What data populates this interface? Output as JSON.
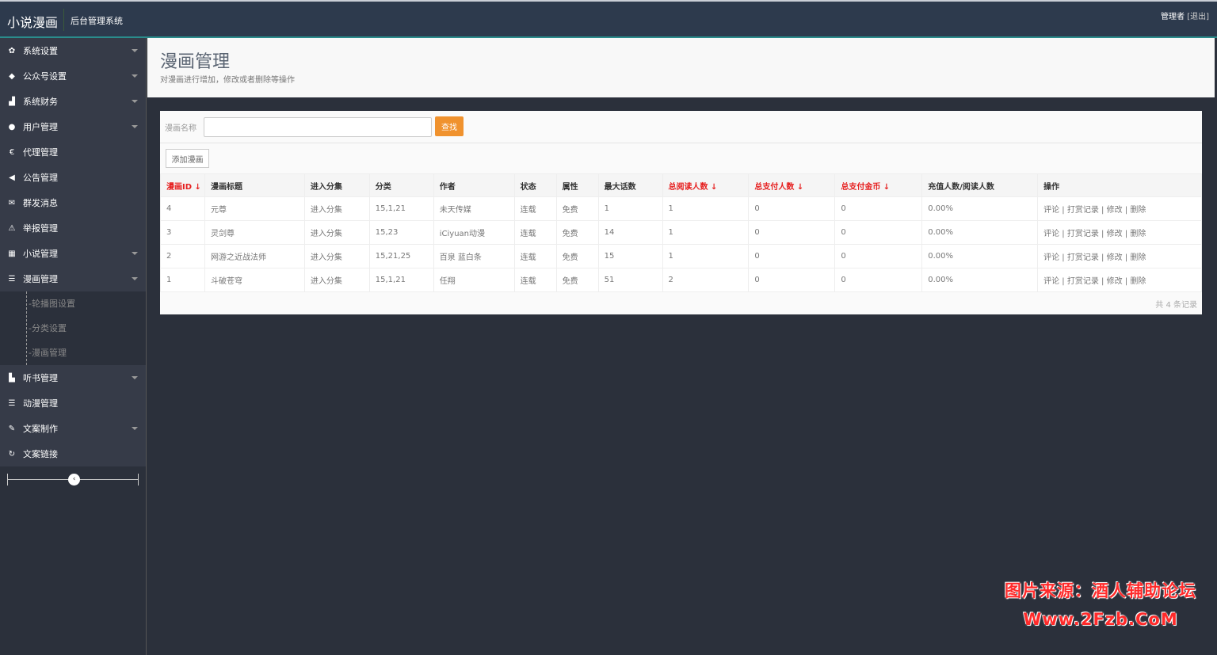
{
  "header": {
    "brand": "小说漫画",
    "system": "后台管理系统",
    "user": "管理者",
    "logout": "[退出]"
  },
  "sidebar": {
    "items": [
      {
        "label": "系统设置",
        "icon": "gear-icon",
        "glyph": "✿",
        "caret": true
      },
      {
        "label": "公众号设置",
        "icon": "tag-icon",
        "glyph": "◆",
        "caret": true
      },
      {
        "label": "系统财务",
        "icon": "bar-chart-icon",
        "glyph": "▟",
        "caret": true
      },
      {
        "label": "用户管理",
        "icon": "user-icon",
        "glyph": "●",
        "caret": true
      },
      {
        "label": "代理管理",
        "icon": "euro-icon",
        "glyph": "€",
        "caret": false
      },
      {
        "label": "公告管理",
        "icon": "bullhorn-icon",
        "glyph": "◀",
        "caret": false
      },
      {
        "label": "群发消息",
        "icon": "envelope-icon",
        "glyph": "✉",
        "caret": false
      },
      {
        "label": "举报管理",
        "icon": "warning-icon",
        "glyph": "⚠",
        "caret": false
      },
      {
        "label": "小说管理",
        "icon": "grid-icon",
        "glyph": "▦",
        "caret": true
      },
      {
        "label": "漫画管理",
        "icon": "list-icon",
        "glyph": "☰",
        "caret": true
      }
    ],
    "submenu": [
      "-轮播图设置",
      "-分类设置",
      "-漫画管理"
    ],
    "items2": [
      {
        "label": "听书管理",
        "icon": "sitemap-icon",
        "glyph": "▙",
        "caret": true
      },
      {
        "label": "动漫管理",
        "icon": "list-icon",
        "glyph": "☰",
        "caret": false
      },
      {
        "label": "文案制作",
        "icon": "edit-icon",
        "glyph": "✎",
        "caret": true
      },
      {
        "label": "文案链接",
        "icon": "share-icon",
        "glyph": "↻",
        "caret": false
      }
    ],
    "collapse_glyph": "‹"
  },
  "page": {
    "title": "漫画管理",
    "subtitle": "对漫画进行增加，修改或者删除等操作"
  },
  "search": {
    "label": "漫画名称",
    "placeholder": "",
    "button": "查找"
  },
  "add_button": "添加漫画",
  "table": {
    "headers": [
      {
        "label": "漫画ID ↓",
        "sortable": true
      },
      {
        "label": "漫画标题"
      },
      {
        "label": "进入分集"
      },
      {
        "label": "分类"
      },
      {
        "label": "作者"
      },
      {
        "label": "状态"
      },
      {
        "label": "属性"
      },
      {
        "label": "最大话数"
      },
      {
        "label": "总阅读人数 ↓",
        "sortable": true
      },
      {
        "label": "总支付人数 ↓",
        "sortable": true
      },
      {
        "label": "总支付金币 ↓",
        "sortable": true
      },
      {
        "label": "充值人数/阅读人数"
      },
      {
        "label": "操作"
      }
    ],
    "rows": [
      [
        "4",
        "元尊",
        "进入分集",
        "15,1,21",
        "未天传媒",
        "连载",
        "免费",
        "1",
        "1",
        "0",
        "0",
        "0.00%"
      ],
      [
        "3",
        "灵剑尊",
        "进入分集",
        "15,23",
        "iCiyuan动漫",
        "连载",
        "免费",
        "14",
        "1",
        "0",
        "0",
        "0.00%"
      ],
      [
        "2",
        "网游之近战法师",
        "进入分集",
        "15,21,25",
        "百泉 蓝白条",
        "连载",
        "免费",
        "15",
        "1",
        "0",
        "0",
        "0.00%"
      ],
      [
        "1",
        "斗破苍穹",
        "进入分集",
        "15,1,21",
        "任翔",
        "连载",
        "免费",
        "51",
        "2",
        "0",
        "0",
        "0.00%"
      ]
    ],
    "actions": [
      "评论",
      "打赏记录",
      "修改",
      "删除"
    ],
    "sep": " | ",
    "footer": "共 4 条记录"
  },
  "watermark": {
    "line1": "图片来源：酒人辅助论坛",
    "line2": "Www.2Fzb.CoM"
  },
  "colors": {
    "accent": "#f0922e",
    "sort_red": "#e61f1f",
    "header_bg": "#2d3a4d",
    "sidebar_bg": "#363b48"
  }
}
